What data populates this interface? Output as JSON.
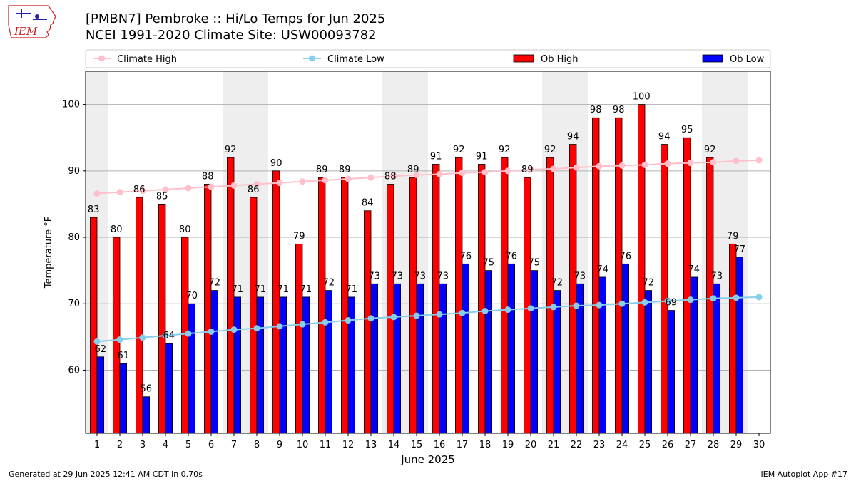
{
  "header": {
    "title_line1": "[PMBN7] Pembroke :: Hi/Lo Temps for Jun 2025",
    "title_line2": "NCEI 1991-2020 Climate Site: USW00093782",
    "logo_text": "IEM"
  },
  "footer": {
    "left": "Generated at 29 Jun 2025 12:41 AM CDT in 0.70s",
    "right": "IEM Autoplot App #17"
  },
  "colors": {
    "climate_high": "#ffc0cb",
    "climate_low": "#87ceeb",
    "ob_high": "#ff0000",
    "ob_low": "#0000ff",
    "weekend_shade": "#eeeeee",
    "logo": "#cc1e1e"
  },
  "chart_data": {
    "type": "bar",
    "xlabel": "June 2025",
    "ylabel": "Temperature °F",
    "ylim": [
      50.5,
      105
    ],
    "yticks": [
      60,
      70,
      80,
      90,
      100
    ],
    "grid": "horizontal",
    "legend_position": "top",
    "categories": [
      "1",
      "2",
      "3",
      "4",
      "5",
      "6",
      "7",
      "8",
      "9",
      "10",
      "11",
      "12",
      "13",
      "14",
      "15",
      "16",
      "17",
      "18",
      "19",
      "20",
      "21",
      "22",
      "23",
      "24",
      "25",
      "26",
      "27",
      "28",
      "29",
      "30"
    ],
    "weekend_days": [
      1,
      7,
      8,
      14,
      15,
      21,
      22,
      28,
      29
    ],
    "series": [
      {
        "name": "Climate High",
        "kind": "line",
        "values": [
          86.6,
          86.8,
          87.0,
          87.2,
          87.4,
          87.6,
          87.8,
          88.0,
          88.2,
          88.4,
          88.6,
          88.8,
          89.0,
          89.2,
          89.4,
          89.5,
          89.7,
          89.8,
          90.0,
          90.2,
          90.3,
          90.5,
          90.7,
          90.8,
          90.9,
          91.1,
          91.2,
          91.3,
          91.5,
          91.6
        ]
      },
      {
        "name": "Climate Low",
        "kind": "line",
        "values": [
          64.3,
          64.6,
          64.9,
          65.2,
          65.5,
          65.8,
          66.1,
          66.3,
          66.6,
          66.9,
          67.2,
          67.5,
          67.8,
          68.0,
          68.2,
          68.4,
          68.6,
          68.9,
          69.1,
          69.3,
          69.5,
          69.7,
          69.8,
          70.0,
          70.2,
          70.4,
          70.6,
          70.8,
          70.9,
          71.0
        ]
      },
      {
        "name": "Ob High",
        "kind": "bar",
        "values": [
          83,
          80,
          86,
          85,
          80,
          88,
          92,
          86,
          90,
          79,
          89,
          89,
          84,
          88,
          89,
          91,
          92,
          91,
          92,
          89,
          92,
          94,
          98,
          98,
          100,
          94,
          95,
          92,
          79,
          null
        ]
      },
      {
        "name": "Ob Low",
        "kind": "bar",
        "values": [
          62,
          61,
          56,
          64,
          70,
          72,
          71,
          71,
          71,
          71,
          72,
          71,
          73,
          73,
          73,
          73,
          76,
          75,
          76,
          75,
          72,
          73,
          74,
          76,
          72,
          69,
          74,
          73,
          77,
          null
        ]
      }
    ]
  }
}
